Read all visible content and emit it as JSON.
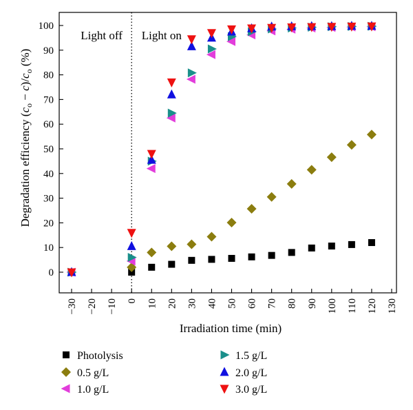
{
  "chart_data": {
    "type": "scatter",
    "xlabel": "Irradiation time (min)",
    "ylabel_parts": [
      "Degradation efficiency (",
      "c",
      "o",
      " − ",
      "c",
      ")/",
      "c",
      "o",
      " (%)"
    ],
    "xlim": [
      -30,
      130
    ],
    "ylim": [
      0,
      100
    ],
    "x_ticks": [
      -30,
      -20,
      -10,
      0,
      10,
      20,
      30,
      40,
      50,
      60,
      70,
      80,
      90,
      100,
      110,
      120,
      130
    ],
    "y_ticks": [
      0,
      10,
      20,
      30,
      40,
      50,
      60,
      70,
      80,
      90,
      100
    ],
    "divider_x": 0,
    "annotations": [
      {
        "text": "Light off",
        "x": -15,
        "y": 95
      },
      {
        "text": "Light on",
        "x": 15,
        "y": 95
      }
    ],
    "legend_placement": "bottom",
    "series": [
      {
        "name": "Photolysis",
        "marker": "square",
        "color": "#000000",
        "x": [
          0,
          10,
          20,
          30,
          40,
          50,
          60,
          70,
          80,
          90,
          100,
          110,
          120
        ],
        "y": [
          0,
          2,
          3.2,
          4.8,
          5.2,
          5.6,
          6.2,
          6.8,
          8,
          9.8,
          10.6,
          11.2,
          12
        ]
      },
      {
        "name": "0.5 g/L",
        "marker": "diamond",
        "color": "#8b7d0f",
        "x": [
          0,
          10,
          20,
          30,
          40,
          50,
          60,
          70,
          80,
          90,
          100,
          110,
          120
        ],
        "y": [
          2,
          8,
          10.5,
          11.3,
          14.4,
          20.1,
          25.7,
          30.5,
          35.8,
          41.5,
          46.6,
          51.6,
          55.8
        ]
      },
      {
        "name": "1.0 g/L",
        "marker": "triangle-left",
        "color": "#e23ddb",
        "x": [
          -30,
          0,
          10,
          20,
          30,
          40,
          50,
          60,
          70,
          80,
          90,
          100,
          110,
          120
        ],
        "y": [
          0,
          4.5,
          42,
          62.5,
          78.2,
          88.2,
          93.5,
          96.2,
          97.8,
          98.5,
          99,
          99.2,
          99.4,
          99.5
        ]
      },
      {
        "name": "1.5 g/L",
        "marker": "triangle-right",
        "color": "#1a8f8b",
        "x": [
          -30,
          0,
          10,
          20,
          30,
          40,
          50,
          60,
          70,
          80,
          90,
          100,
          110,
          120
        ],
        "y": [
          0,
          6,
          45,
          64.5,
          80.8,
          90.5,
          95.5,
          97.5,
          98.6,
          99,
          99.3,
          99.5,
          99.6,
          99.7
        ]
      },
      {
        "name": "2.0 g/L",
        "marker": "triangle-up",
        "color": "#1010e0",
        "x": [
          -30,
          0,
          10,
          20,
          30,
          40,
          50,
          60,
          70,
          80,
          90,
          100,
          110,
          120
        ],
        "y": [
          0,
          10.5,
          45.5,
          72,
          91.5,
          95,
          97.5,
          98.8,
          99.5,
          99.6,
          99.7,
          99.7,
          99.8,
          99.8
        ]
      },
      {
        "name": "3.0 g/L",
        "marker": "triangle-down",
        "color": "#ee1111",
        "x": [
          -30,
          0,
          10,
          20,
          30,
          40,
          50,
          60,
          70,
          80,
          90,
          100,
          110,
          120
        ],
        "y": [
          0,
          16,
          48,
          77,
          94.5,
          97,
          98.5,
          98.9,
          99.1,
          99.3,
          99.4,
          99.5,
          99.6,
          99.7
        ]
      }
    ]
  }
}
